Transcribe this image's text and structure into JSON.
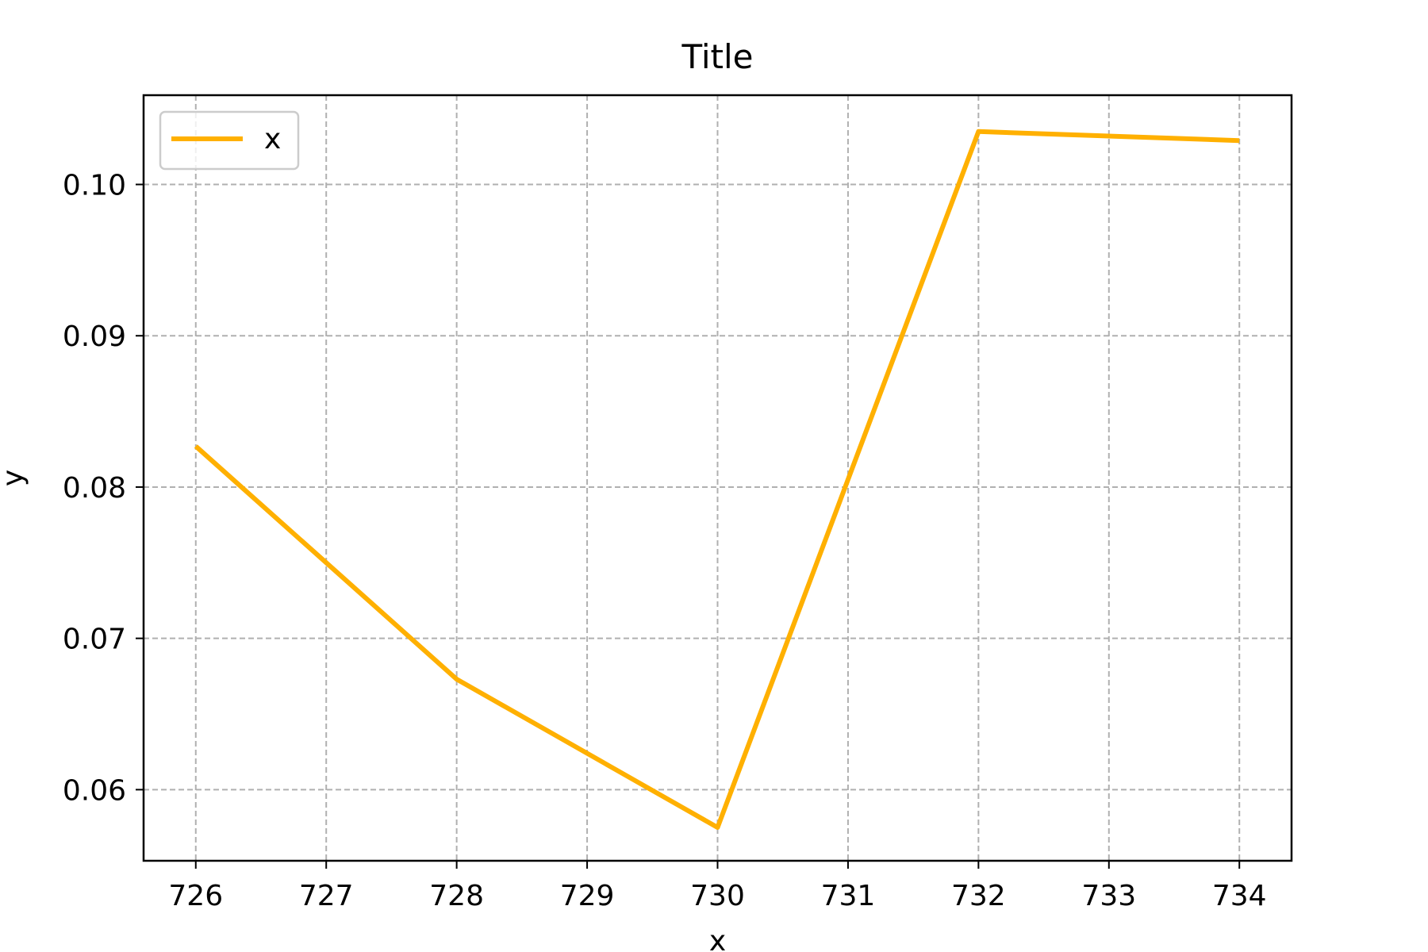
{
  "chart_data": {
    "type": "line",
    "title": "Title",
    "xlabel": "x",
    "ylabel": "y",
    "x": [
      726,
      728,
      730,
      732,
      734
    ],
    "series": [
      {
        "name": "x",
        "color": "#ffb000",
        "values": [
          0.0827,
          0.0673,
          0.0575,
          0.1035,
          0.1029
        ]
      }
    ],
    "xticks": [
      726,
      727,
      728,
      729,
      730,
      731,
      732,
      733,
      734
    ],
    "xtick_labels": [
      "726",
      "727",
      "728",
      "729",
      "730",
      "731",
      "732",
      "733",
      "734"
    ],
    "yticks": [
      0.06,
      0.07,
      0.08,
      0.09,
      0.1
    ],
    "ytick_labels": [
      "0.06",
      "0.07",
      "0.08",
      "0.09",
      "0.10"
    ],
    "xlim": [
      725.6,
      734.4
    ],
    "ylim": [
      0.0553,
      0.1059
    ],
    "grid": true,
    "grid_style": "dashed",
    "legend_position": "upper-left"
  }
}
